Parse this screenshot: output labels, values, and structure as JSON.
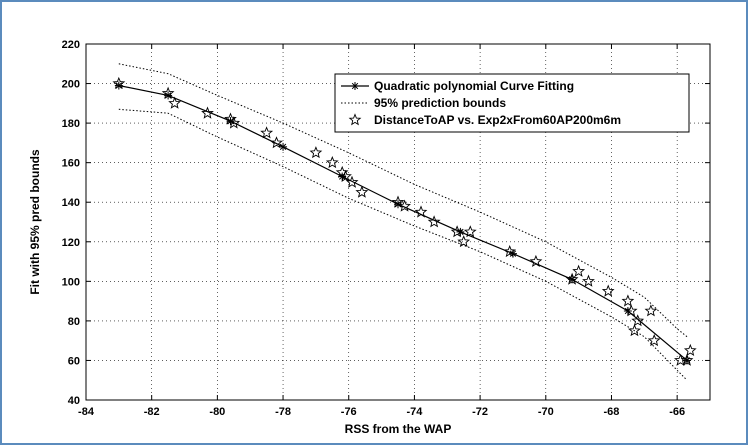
{
  "chart_data": {
    "type": "line",
    "title": "",
    "xlabel": "RSS from the WAP",
    "ylabel": "Fit with 95% pred bounds",
    "xlim": [
      -84,
      -65
    ],
    "ylim": [
      40,
      220
    ],
    "xticks": [
      -84,
      -82,
      -80,
      -78,
      -76,
      -74,
      -72,
      -70,
      -68,
      -66
    ],
    "yticks": [
      40,
      60,
      80,
      100,
      120,
      140,
      160,
      180,
      200,
      220
    ],
    "grid": true,
    "legend_position": "top-right",
    "series": [
      {
        "name": "Quadratic polynomial Curve Fitting",
        "style": "solid-asterisk",
        "color": "#000000",
        "x": [
          -83.0,
          -81.5,
          -79.6,
          -78.0,
          -76.2,
          -74.5,
          -72.6,
          -71.0,
          -69.2,
          -67.5,
          -65.7
        ],
        "y": [
          199,
          194,
          181,
          168,
          153,
          139,
          125,
          114,
          101,
          85,
          60
        ]
      },
      {
        "name": "95% prediction bounds",
        "style": "dotted",
        "color": "#000000",
        "upper": {
          "x": [
            -83.0,
            -81.5,
            -80.0,
            -78.0,
            -76.0,
            -74.0,
            -72.0,
            -70.0,
            -68.0,
            -67.0,
            -66.0,
            -65.7
          ],
          "y": [
            210,
            205,
            194,
            180,
            165,
            149,
            135,
            120,
            102,
            92,
            76,
            72
          ]
        },
        "lower": {
          "x": [
            -83.0,
            -81.5,
            -80.0,
            -78.0,
            -76.0,
            -74.0,
            -72.0,
            -70.0,
            -68.0,
            -67.0,
            -66.0,
            -65.7
          ],
          "y": [
            187,
            185,
            173,
            158,
            142,
            128,
            115,
            100,
            82,
            72,
            55,
            50
          ]
        }
      },
      {
        "name": "DistanceToAP vs. Exp2xFrom60AP200m6m",
        "style": "star-markers",
        "color": "#000000",
        "x": [
          -83.0,
          -81.5,
          -81.3,
          -80.3,
          -79.6,
          -79.5,
          -78.5,
          -78.2,
          -77.0,
          -76.5,
          -76.2,
          -76.1,
          -75.9,
          -75.6,
          -74.5,
          -74.3,
          -73.8,
          -73.4,
          -72.7,
          -72.5,
          -72.3,
          -71.1,
          -70.3,
          -69.2,
          -69.0,
          -68.7,
          -68.1,
          -67.5,
          -67.4,
          -67.3,
          -67.2,
          -66.8,
          -66.7,
          -65.9,
          -65.7,
          -65.6
        ],
        "y": [
          200,
          195,
          190,
          185,
          182,
          180,
          175,
          170,
          165,
          160,
          155,
          153,
          150,
          145,
          140,
          138,
          135,
          130,
          125,
          120,
          125,
          115,
          110,
          101,
          105,
          100,
          95,
          90,
          85,
          75,
          80,
          85,
          70,
          60,
          60,
          65
        ]
      }
    ]
  }
}
